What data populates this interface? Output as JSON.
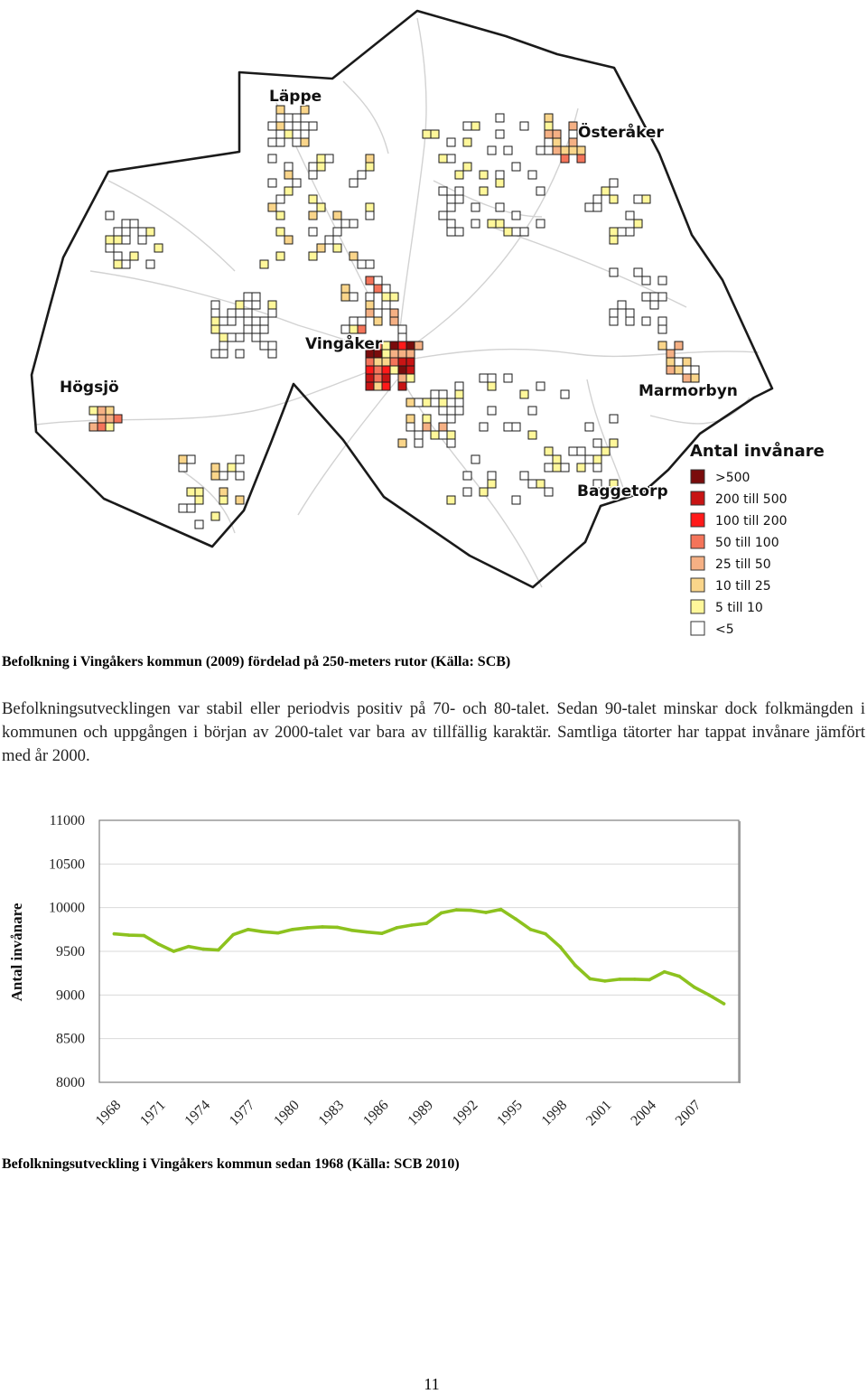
{
  "map": {
    "places": [
      "Läppe",
      "Österåker",
      "Vingåker",
      "Högsjö",
      "Marmorbyn",
      "Baggetorp"
    ],
    "legend": {
      "title": "Antal invånare",
      "entries": [
        {
          "label": ">500",
          "color": "#7a0c0c"
        },
        {
          "label": "200 till 500",
          "color": "#c81414"
        },
        {
          "label": "100 till 200",
          "color": "#ff1a1a"
        },
        {
          "label": "50 till 100",
          "color": "#f4745a"
        },
        {
          "label": "25 till  50",
          "color": "#f5b084"
        },
        {
          "label": "10 till  25",
          "color": "#fad58a"
        },
        {
          "label": "5 till  10",
          "color": "#fff79a"
        },
        {
          "label": "<5",
          "color": "#ffffff"
        }
      ]
    }
  },
  "captions": {
    "map": "Befolkning i Vingåkers kommun (2009) fördelad på 250-meters rutor (Källa: SCB)",
    "chart": "Befolkningsutveckling i Vingåkers kommun sedan 1968 (Källa: SCB 2010)"
  },
  "body_text": "Befolkningsutvecklingen var stabil eller periodvis positiv på 70- och 80-talet. Sedan 90-talet minskar dock folkmängden i kommunen och uppgången i början av 2000-talet var bara av tillfällig karaktär. Samtliga tätorter har tappat invånare jämfört med år 2000.",
  "page_number": "11",
  "chart_data": {
    "type": "line",
    "ylabel": "Antal invånare",
    "ylim": [
      8000,
      11000
    ],
    "yticks": [
      "8000",
      "8500",
      "9000",
      "9500",
      "10000",
      "10500",
      "11000"
    ],
    "xtick_labels": [
      "1968",
      "1971",
      "1974",
      "1977",
      "1980",
      "1983",
      "1986",
      "1989",
      "1992",
      "1995",
      "1998",
      "2001",
      "2004",
      "2007"
    ],
    "grid": true,
    "series": [
      {
        "color": "#8dc21f",
        "x": [
          1968,
          1969,
          1970,
          1971,
          1972,
          1973,
          1974,
          1975,
          1976,
          1977,
          1978,
          1979,
          1980,
          1981,
          1982,
          1983,
          1984,
          1985,
          1986,
          1987,
          1988,
          1989,
          1990,
          1991,
          1992,
          1993,
          1994,
          1995,
          1996,
          1997,
          1998,
          1999,
          2000,
          2001,
          2002,
          2003,
          2004,
          2005,
          2006,
          2007,
          2008,
          2009
        ],
        "values": [
          9700,
          9685,
          9680,
          9580,
          9500,
          9555,
          9525,
          9515,
          9690,
          9750,
          9725,
          9710,
          9750,
          9770,
          9780,
          9775,
          9740,
          9720,
          9705,
          9770,
          9800,
          9820,
          9940,
          9975,
          9970,
          9945,
          9980,
          9870,
          9750,
          9700,
          9550,
          9340,
          9185,
          9160,
          9180,
          9180,
          9175,
          9265,
          9215,
          9090,
          9000,
          8900
        ]
      }
    ]
  }
}
